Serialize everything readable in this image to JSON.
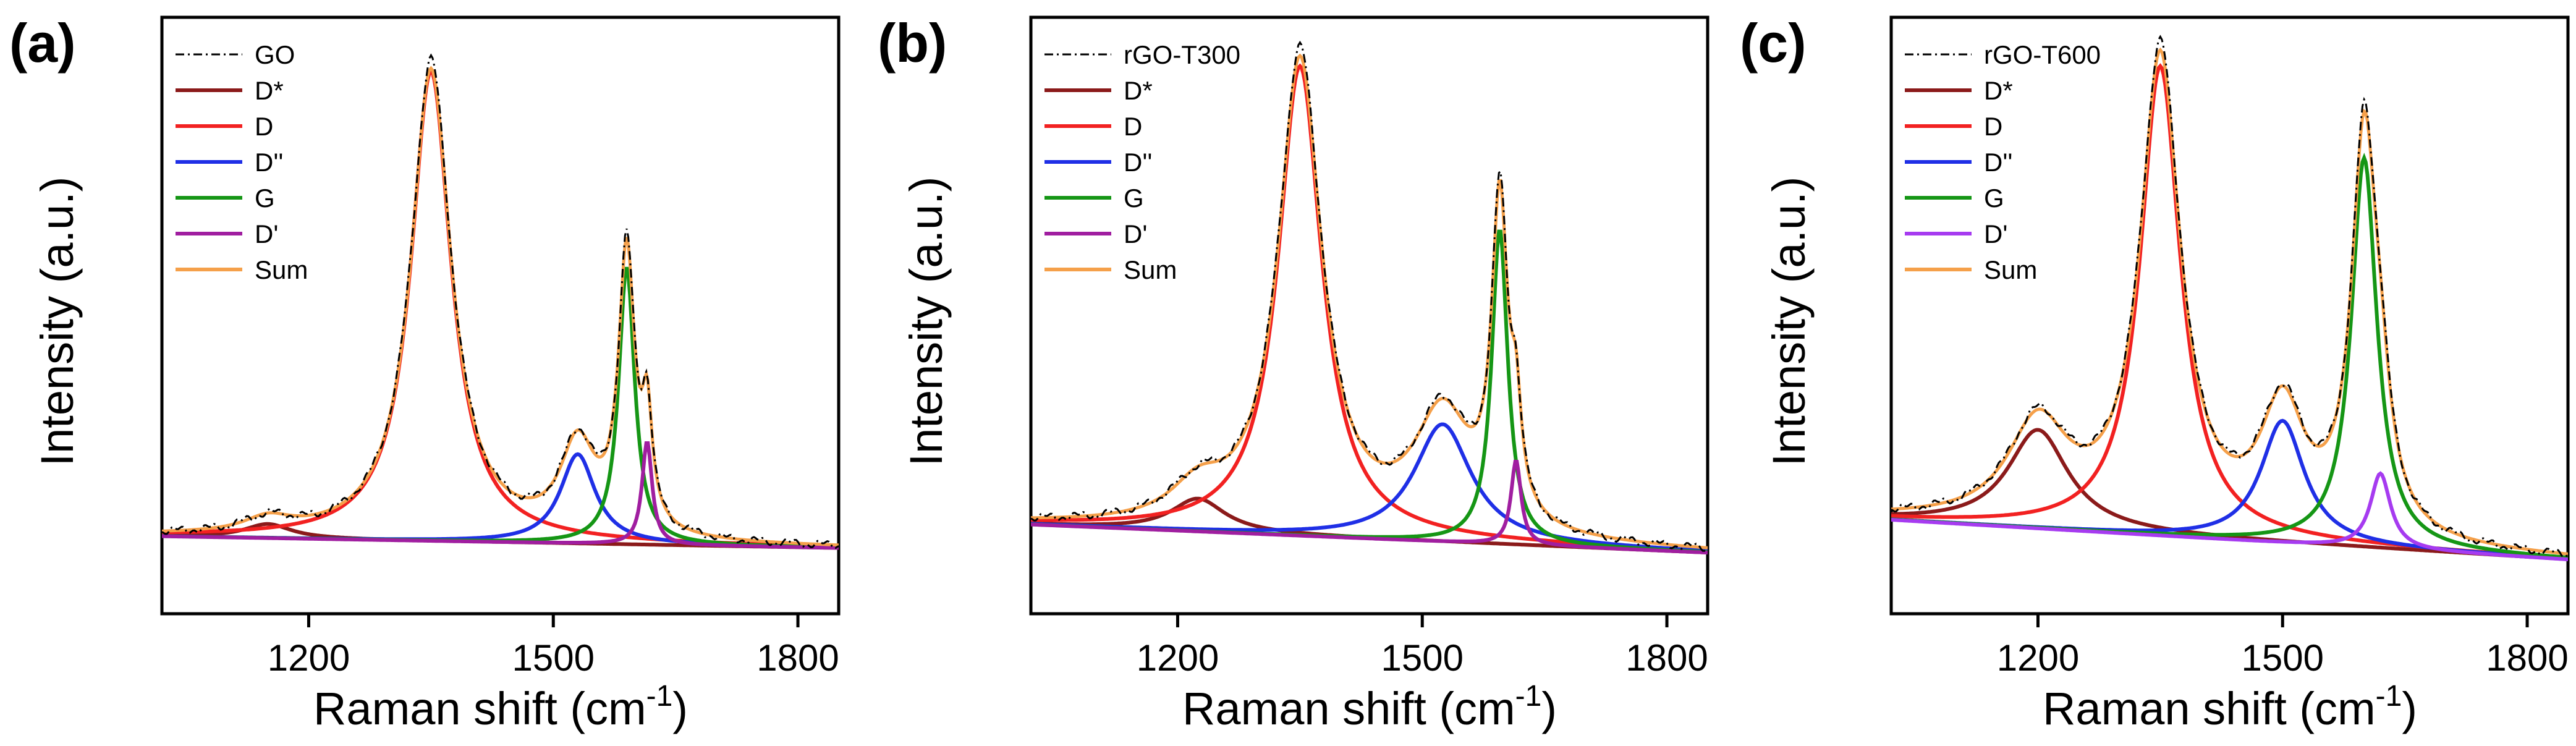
{
  "colors": {
    "measured": "#000000",
    "D_star": "#8B1A1A",
    "D": "#F22121",
    "D_double_prime": "#1F2FE6",
    "G": "#159615",
    "D_prime_a": "#A01EA0",
    "D_prime_b": "#A01EA0",
    "D_prime_c": "#A63BF0",
    "Sum": "#F5A04A"
  },
  "chart_data": [
    {
      "panel_label": "(a)",
      "type": "line",
      "xlabel_main": "Raman shift (cm",
      "xlabel_sup": "-1",
      "xlabel_close": ")",
      "ylabel": "Intensity (a.u.)",
      "xlim": [
        1020,
        1850
      ],
      "ylim": [
        -0.15,
        1.12
      ],
      "xticks": [
        1200,
        1500,
        1800
      ],
      "xtick_labels": [
        "1200",
        "1500",
        "1800"
      ],
      "baseline": [
        0.015,
        -0.01
      ],
      "legend": [
        "GO",
        "D*",
        "D",
        "D''",
        "G",
        "D'",
        "Sum"
      ],
      "peaks": [
        {
          "name": "D*",
          "center": 1150,
          "amp": 0.03,
          "width": 70
        },
        {
          "name": "D",
          "center": 1350,
          "amp": 1.0,
          "width": 60
        },
        {
          "name": "D''",
          "center": 1530,
          "amp": 0.19,
          "width": 52
        },
        {
          "name": "G",
          "center": 1590,
          "amp": 0.59,
          "width": 24
        },
        {
          "name": "D'",
          "center": 1615,
          "amp": 0.22,
          "width": 15
        }
      ]
    },
    {
      "panel_label": "(b)",
      "type": "line",
      "xlabel_main": "Raman shift (cm",
      "xlabel_sup": "-1",
      "xlabel_close": ")",
      "ylabel": "Intensity (a.u.)",
      "xlim": [
        1020,
        1850
      ],
      "ylim": [
        -0.15,
        1.12
      ],
      "xticks": [
        1200,
        1500,
        1800
      ],
      "xtick_labels": [
        "1200",
        "1500",
        "1800"
      ],
      "baseline": [
        0.04,
        -0.02
      ],
      "legend": [
        "rGO-T300",
        "D*",
        "D",
        "D''",
        "G",
        "D'",
        "Sum"
      ],
      "peaks": [
        {
          "name": "D*",
          "center": 1225,
          "amp": 0.07,
          "width": 80
        },
        {
          "name": "D",
          "center": 1350,
          "amp": 1.0,
          "width": 65
        },
        {
          "name": "D''",
          "center": 1525,
          "amp": 0.25,
          "width": 85
        },
        {
          "name": "G",
          "center": 1595,
          "amp": 0.67,
          "width": 24
        },
        {
          "name": "D'",
          "center": 1615,
          "amp": 0.18,
          "width": 15
        }
      ]
    },
    {
      "panel_label": "(c)",
      "type": "line",
      "xlabel_main": "Raman shift (cm",
      "xlabel_sup": "-1",
      "xlabel_close": ")",
      "ylabel": "Intensity (a.u.)",
      "xlim": [
        1020,
        1850
      ],
      "ylim": [
        -0.15,
        1.12
      ],
      "xticks": [
        1200,
        1500,
        1800
      ],
      "xtick_labels": [
        "1200",
        "1500",
        "1800"
      ],
      "baseline": [
        0.05,
        -0.035
      ],
      "legend": [
        "rGO-T600",
        "D*",
        "D",
        "D''",
        "G",
        "D'",
        "Sum"
      ],
      "peaks": [
        {
          "name": "D*",
          "center": 1200,
          "amp": 0.21,
          "width": 90
        },
        {
          "name": "D",
          "center": 1350,
          "amp": 1.0,
          "width": 60
        },
        {
          "name": "D''",
          "center": 1500,
          "amp": 0.26,
          "width": 65
        },
        {
          "name": "G",
          "center": 1600,
          "amp": 0.83,
          "width": 38
        },
        {
          "name": "D'",
          "center": 1620,
          "amp": 0.16,
          "width": 30
        }
      ]
    }
  ]
}
